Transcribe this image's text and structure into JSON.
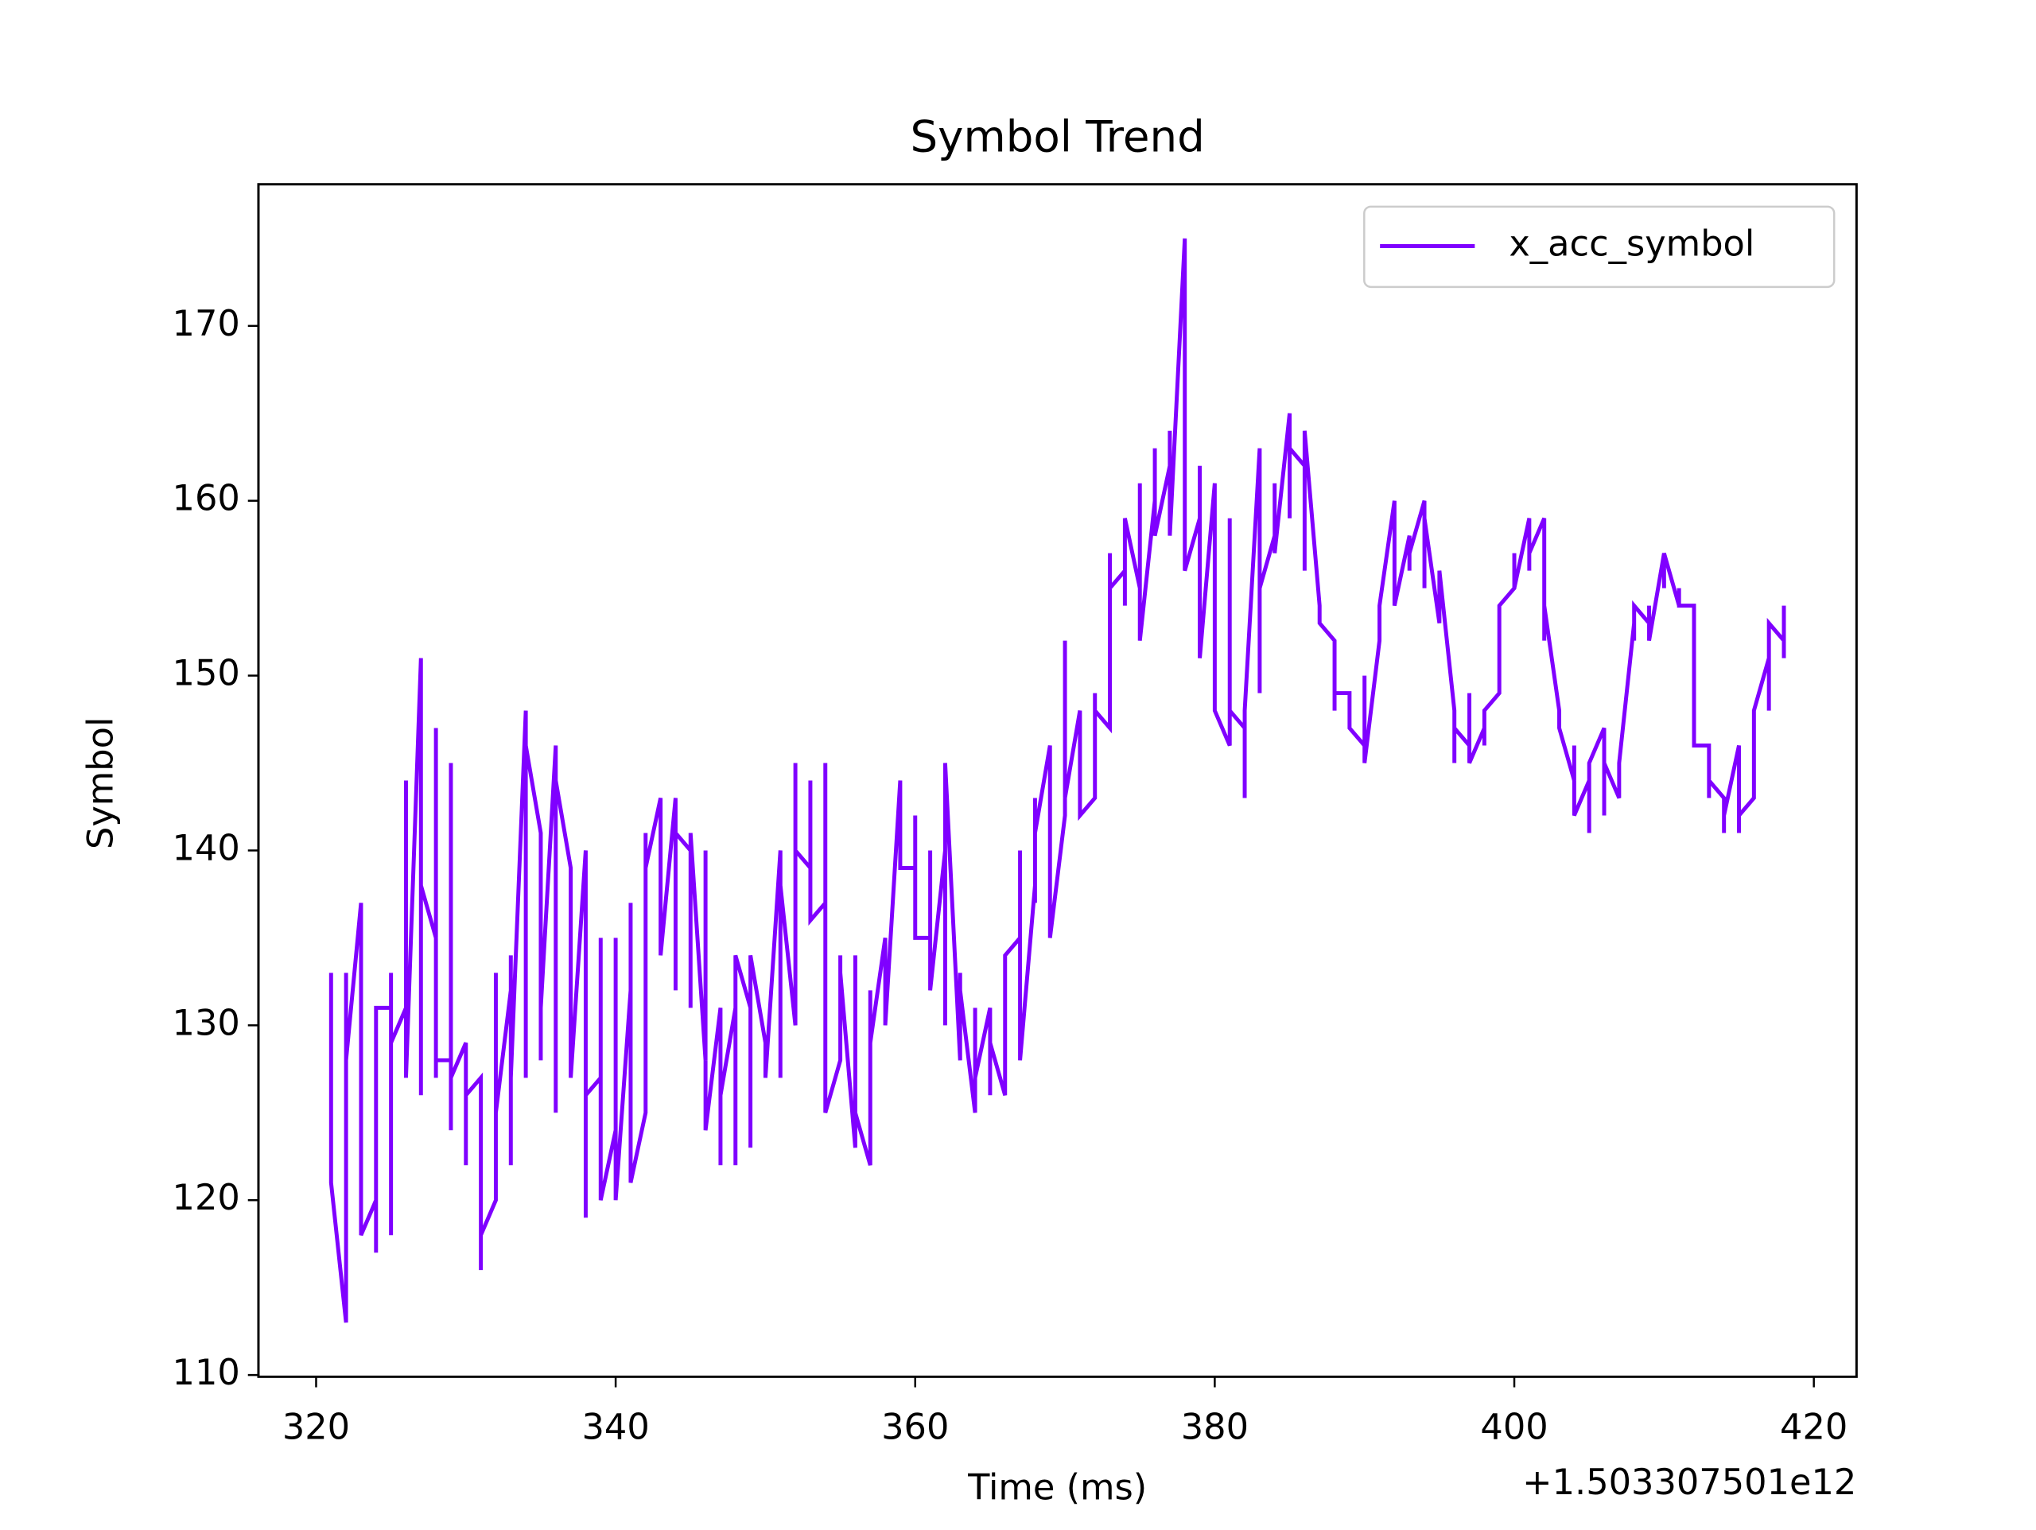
{
  "chart_data": {
    "type": "line",
    "title": "Symbol Trend",
    "x_label": "Time (ms)",
    "y_label": "Symbol",
    "x_offset_label": "+1.503307501e12",
    "x": [
      321,
      321,
      322,
      322,
      322,
      323,
      323,
      323,
      324,
      324,
      324,
      325,
      325,
      325,
      325,
      326,
      326,
      326,
      327,
      327,
      327,
      328,
      328,
      328,
      328,
      329,
      329,
      329,
      329,
      330,
      330,
      330,
      331,
      331,
      331,
      332,
      332,
      332,
      333,
      333,
      333,
      333,
      334,
      334,
      334,
      335,
      335,
      335,
      336,
      336,
      336,
      337,
      337,
      337,
      337,
      338,
      338,
      338,
      339,
      339,
      339,
      340,
      340,
      340,
      341,
      341,
      341,
      341,
      342,
      342,
      342,
      343,
      343,
      343,
      344,
      344,
      344,
      345,
      345,
      345,
      346,
      346,
      346,
      347,
      347,
      347,
      348,
      348,
      348,
      349,
      349,
      349,
      350,
      350,
      350,
      351,
      351,
      351,
      352,
      352,
      352,
      353,
      353,
      353,
      354,
      354,
      354,
      355,
      355,
      355,
      356,
      356,
      356,
      357,
      357,
      357,
      358,
      358,
      358,
      359,
      359,
      360,
      360,
      360,
      361,
      361,
      361,
      362,
      362,
      362,
      363,
      363,
      363,
      364,
      364,
      364,
      365,
      365,
      365,
      365,
      366,
      366,
      366,
      367,
      367,
      367,
      367,
      368,
      368,
      368,
      368,
      369,
      369,
      370,
      370,
      370,
      371,
      371,
      371,
      372,
      372,
      372,
      373,
      373,
      373,
      374,
      374,
      374,
      375,
      375,
      375,
      376,
      376,
      376,
      377,
      377,
      377,
      378,
      378,
      378,
      379,
      379,
      379,
      380,
      380,
      380,
      381,
      381,
      381,
      382,
      382,
      382,
      383,
      383,
      383,
      384,
      384,
      384,
      385,
      385,
      385,
      386,
      386,
      386,
      387,
      387,
      388,
      388,
      388,
      389,
      389,
      389,
      390,
      390,
      390,
      391,
      391,
      392,
      392,
      392,
      393,
      393,
      393,
      394,
      394,
      394,
      395,
      395,
      396,
      396,
      396,
      397,
      397,
      397,
      398,
      398,
      398,
      399,
      399,
      399,
      400,
      400,
      400,
      401,
      401,
      401,
      402,
      402,
      402,
      402,
      403,
      403,
      404,
      404,
      404,
      405,
      405,
      405,
      406,
      406,
      406,
      407,
      407,
      407,
      408,
      408,
      408,
      409,
      409,
      409,
      410,
      410,
      410,
      411,
      411,
      411,
      412,
      412,
      413,
      413,
      413,
      414,
      414,
      414,
      415,
      415,
      415,
      416,
      416,
      417,
      417,
      417,
      418,
      418,
      418
    ],
    "series": [
      {
        "name": "x_acc_symbol",
        "color": "#7f00ff",
        "values": [
          133,
          121,
          113,
          133,
          128,
          137,
          121,
          118,
          120,
          117,
          131,
          131,
          118,
          133,
          129,
          131,
          144,
          127,
          151,
          126,
          138,
          135,
          147,
          127,
          128,
          128,
          145,
          124,
          127,
          129,
          122,
          126,
          127,
          116,
          118,
          120,
          133,
          125,
          132,
          134,
          122,
          127,
          148,
          127,
          146,
          141,
          128,
          131,
          146,
          125,
          144,
          139,
          129,
          135,
          127,
          140,
          119,
          126,
          127,
          135,
          120,
          124,
          135,
          120,
          132,
          130,
          137,
          121,
          125,
          141,
          139,
          143,
          135,
          134,
          143,
          132,
          141,
          140,
          131,
          141,
          128,
          140,
          124,
          131,
          122,
          126,
          131,
          122,
          134,
          131,
          123,
          134,
          129,
          128,
          127,
          140,
          127,
          138,
          130,
          145,
          140,
          139,
          144,
          136,
          137,
          145,
          125,
          128,
          134,
          133,
          123,
          134,
          125,
          122,
          132,
          129,
          135,
          133,
          130,
          144,
          139,
          139,
          142,
          135,
          135,
          140,
          132,
          140,
          130,
          145,
          128,
          133,
          132,
          125,
          131,
          127,
          131,
          130,
          126,
          129,
          126,
          131,
          134,
          135,
          140,
          137,
          128,
          138,
          137,
          143,
          141,
          146,
          135,
          142,
          152,
          143,
          148,
          143,
          142,
          143,
          149,
          148,
          147,
          157,
          155,
          156,
          154,
          159,
          155,
          161,
          152,
          160,
          163,
          158,
          162,
          164,
          158,
          175,
          168,
          156,
          159,
          162,
          151,
          161,
          158,
          148,
          146,
          159,
          148,
          147,
          143,
          148,
          163,
          149,
          155,
          158,
          161,
          157,
          165,
          159,
          163,
          162,
          156,
          164,
          154,
          153,
          152,
          148,
          149,
          149,
          148,
          147,
          146,
          150,
          145,
          152,
          154,
          160,
          158,
          154,
          158,
          156,
          157,
          160,
          155,
          159,
          153,
          156,
          148,
          145,
          147,
          146,
          149,
          145,
          147,
          146,
          148,
          149,
          151,
          154,
          155,
          157,
          155,
          159,
          156,
          157,
          159,
          152,
          153,
          154,
          148,
          147,
          144,
          146,
          142,
          144,
          141,
          145,
          147,
          142,
          145,
          143,
          144,
          145,
          153,
          152,
          154,
          153,
          154,
          152,
          157,
          155,
          157,
          154,
          155,
          154,
          154,
          146,
          146,
          143,
          144,
          143,
          141,
          142,
          146,
          141,
          142,
          143,
          148,
          151,
          148,
          153,
          152,
          151,
          154
        ]
      }
    ],
    "xlim": [
      316.15,
      422.85
    ],
    "xticks": [
      320,
      340,
      360,
      380,
      400,
      420
    ],
    "ylim": [
      109.9,
      178.1
    ],
    "yticks": [
      110,
      120,
      130,
      140,
      150,
      160,
      170
    ],
    "legend": "upper right",
    "grid": false
  }
}
